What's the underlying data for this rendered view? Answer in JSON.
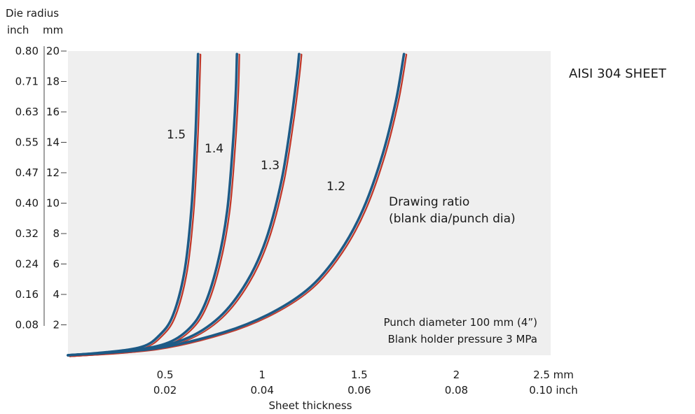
{
  "chart_data": {
    "type": "line",
    "title": "AISI 304 SHEET",
    "xlabel": "Sheet thickness",
    "ylabel": "Die radius",
    "y_units": [
      "inch",
      "mm"
    ],
    "xlim": [
      0,
      2.5
    ],
    "ylim": [
      0,
      20
    ],
    "x_ticks": [
      {
        "value": 0.5,
        "mm": "0.5",
        "inch": "0.02"
      },
      {
        "value": 1,
        "mm": "1",
        "inch": "0.04"
      },
      {
        "value": 1.5,
        "mm": "1.5",
        "inch": "0.06"
      },
      {
        "value": 2,
        "mm": "2",
        "inch": "0.08"
      },
      {
        "value": 2.5,
        "mm": "2.5 mm",
        "inch": "0.10 inch"
      }
    ],
    "y_ticks": [
      {
        "value": 20,
        "mm": "20",
        "inch": "0.80"
      },
      {
        "value": 18,
        "mm": "18",
        "inch": "0.71"
      },
      {
        "value": 16,
        "mm": "16",
        "inch": "0.63"
      },
      {
        "value": 14,
        "mm": "14",
        "inch": "0.55"
      },
      {
        "value": 12,
        "mm": "12",
        "inch": "0.47"
      },
      {
        "value": 10,
        "mm": "10",
        "inch": "0.40"
      },
      {
        "value": 8,
        "mm": "8",
        "inch": "0.32"
      },
      {
        "value": 6,
        "mm": "6",
        "inch": "0.24"
      },
      {
        "value": 4,
        "mm": "4",
        "inch": "0.16"
      },
      {
        "value": 2,
        "mm": "2",
        "inch": "0.08"
      }
    ],
    "legend_title": "Drawing ratio",
    "legend_subtitle": "(blank dia/punch dia)",
    "notes": [
      "Punch diameter 100 mm (4”)",
      "Blank holder pressure 3 MPa"
    ],
    "colors": {
      "primary": "#1d5a86",
      "secondary": "#c0392b",
      "plot_bg": "#efefef"
    },
    "series": [
      {
        "name": "1.5",
        "points": [
          [
            0,
            0
          ],
          [
            0.2,
            0.2
          ],
          [
            0.38,
            0.55
          ],
          [
            0.47,
            1.3
          ],
          [
            0.54,
            2.6
          ],
          [
            0.6,
            5.5
          ],
          [
            0.635,
            9.5
          ],
          [
            0.655,
            14
          ],
          [
            0.665,
            17.5
          ],
          [
            0.67,
            19.8
          ]
        ]
      },
      {
        "name": "1.4",
        "points": [
          [
            0,
            0
          ],
          [
            0.3,
            0.28
          ],
          [
            0.5,
            0.75
          ],
          [
            0.62,
            1.7
          ],
          [
            0.7,
            3.2
          ],
          [
            0.77,
            6.0
          ],
          [
            0.82,
            9.5
          ],
          [
            0.85,
            14
          ],
          [
            0.865,
            17.5
          ],
          [
            0.87,
            19.8
          ]
        ]
      },
      {
        "name": "1.3",
        "points": [
          [
            0,
            0
          ],
          [
            0.35,
            0.32
          ],
          [
            0.6,
            1.05
          ],
          [
            0.78,
            2.5
          ],
          [
            0.92,
            4.8
          ],
          [
            1.02,
            7.6
          ],
          [
            1.1,
            11.5
          ],
          [
            1.15,
            15.5
          ],
          [
            1.18,
            18.5
          ],
          [
            1.19,
            19.8
          ]
        ]
      },
      {
        "name": "1.2",
        "points": [
          [
            0,
            0
          ],
          [
            0.45,
            0.45
          ],
          [
            0.8,
            1.5
          ],
          [
            1.05,
            2.8
          ],
          [
            1.25,
            4.5
          ],
          [
            1.4,
            6.8
          ],
          [
            1.52,
            9.6
          ],
          [
            1.62,
            13.2
          ],
          [
            1.69,
            16.8
          ],
          [
            1.73,
            19.8
          ]
        ]
      }
    ]
  }
}
